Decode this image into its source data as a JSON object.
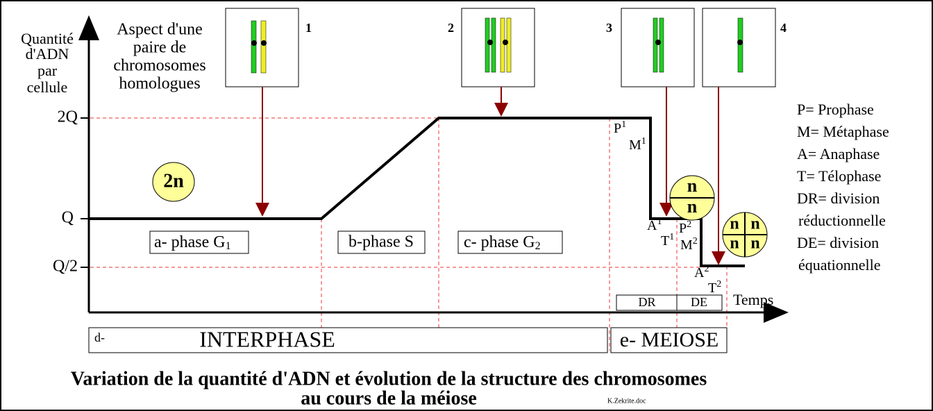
{
  "axis": {
    "y_label": [
      "Quantité",
      "d'ADN",
      "par",
      "cellule"
    ],
    "y_levels": [
      "2Q",
      "Q",
      "Q/2"
    ],
    "x_label": "Temps"
  },
  "chromosome_caption": [
    "Aspect d'une",
    "paire de",
    "chromosomes",
    "homologues"
  ],
  "panels": [
    "1",
    "2",
    "3",
    "4"
  ],
  "cells": {
    "diploid": "2n",
    "two_cells": [
      "n",
      "n"
    ],
    "four_cells": [
      "n",
      "n",
      "n",
      "n"
    ]
  },
  "phases": {
    "g1": {
      "text": "a- phase G",
      "sub": "1"
    },
    "s": "b-phase S",
    "g2": {
      "text": "c- phase G",
      "sub": "2"
    }
  },
  "stages": [
    {
      "text": "P",
      "sub": "1"
    },
    {
      "text": "M",
      "sub": "1"
    },
    {
      "text": "A",
      "sub": "1"
    },
    {
      "text": "T",
      "sub": "1"
    },
    {
      "text": "P",
      "sub": "2"
    },
    {
      "text": "M",
      "sub": "2"
    },
    {
      "text": "A",
      "sub": "2"
    },
    {
      "text": "T",
      "sub": "2"
    }
  ],
  "divisions": [
    "DR",
    "DE"
  ],
  "periods": {
    "interphase_prefix": "d-",
    "interphase": "INTERPHASE",
    "meiose": "e- MEIOSE"
  },
  "legend": [
    "P= Prophase",
    "M= Métaphase",
    "A= Anaphase",
    "T= Télophase",
    "DR= division",
    "réductionnelle",
    "DE= division",
    "équationnelle"
  ],
  "title": [
    "Variation de la quantité d'ADN et évolution de la structure des chromosomes",
    "au cours de la méiose"
  ],
  "credit": "K.Zekrite.doc"
}
